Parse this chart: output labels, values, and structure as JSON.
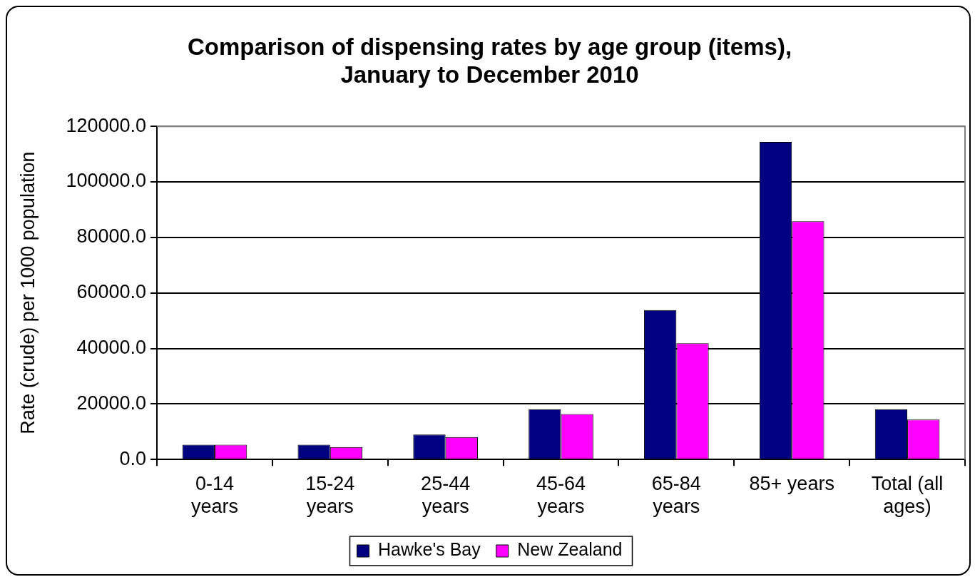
{
  "chart_data": {
    "type": "bar",
    "title": "Comparison of dispensing rates by age group (items), January to December 2010",
    "ylabel": "Rate (crude) per 1000 population",
    "categories": [
      "0-14 years",
      "15-24 years",
      "25-44 years",
      "45-64 years",
      "65-84 years",
      "85+ years",
      "Total (all ages)"
    ],
    "series": [
      {
        "name": "Hawke's Bay",
        "color": "#000080",
        "values": [
          5300,
          5300,
          9000,
          18100,
          53800,
          114400,
          18100
        ]
      },
      {
        "name": "New Zealand",
        "color": "#ff00ff",
        "values": [
          5300,
          4500,
          8100,
          16400,
          41900,
          85800,
          14400
        ]
      }
    ],
    "ylim": [
      0,
      120000
    ],
    "yticks": [
      {
        "value": 0,
        "label": "0.0"
      },
      {
        "value": 20000,
        "label": "20000.0"
      },
      {
        "value": 40000,
        "label": "40000.0"
      },
      {
        "value": 60000,
        "label": "60000.0"
      },
      {
        "value": 80000,
        "label": "80000.0"
      },
      {
        "value": 100000,
        "label": "100000.0"
      },
      {
        "value": 120000,
        "label": "120000.0"
      }
    ],
    "grid": "y",
    "legend": "bottom"
  }
}
